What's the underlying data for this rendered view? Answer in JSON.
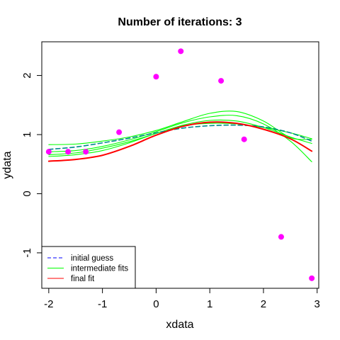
{
  "chart_data": {
    "type": "scatter",
    "title": "Number of iterations: 3",
    "xlabel": "xdata",
    "ylabel": "ydata",
    "xlim": [
      -2.13,
      3.03
    ],
    "ylim": [
      -1.6,
      2.57
    ],
    "x_ticks": [
      -2,
      -1,
      0,
      1,
      2,
      3
    ],
    "y_ticks": [
      -1,
      0,
      1,
      2
    ],
    "x_tick_labels": [
      "-2",
      "-1",
      "0",
      "1",
      "2",
      "3"
    ],
    "y_tick_labels": [
      "-1",
      "0",
      "1",
      "2"
    ],
    "legend_position": "bottom-left",
    "points": {
      "color": "#ff00ff",
      "x": [
        -2.0,
        -1.64,
        -1.31,
        -0.69,
        0.0,
        0.46,
        1.21,
        1.64,
        2.33,
        2.9
      ],
      "y": [
        0.71,
        0.71,
        0.71,
        1.04,
        1.98,
        2.41,
        1.91,
        0.92,
        -0.73,
        -1.43
      ]
    },
    "x_grid": [
      -2.0,
      -1.5,
      -1.0,
      -0.5,
      0.0,
      0.5,
      1.0,
      1.5,
      2.0,
      2.5,
      2.9
    ],
    "series": [
      {
        "name": "initial guess",
        "role": "initial",
        "color": "#0000ff",
        "dash": true,
        "y": [
          0.75,
          0.79,
          0.86,
          0.94,
          1.03,
          1.11,
          1.15,
          1.16,
          1.13,
          1.03,
          0.89
        ]
      },
      {
        "name": "intermediate fits",
        "role": "intermediate",
        "color": "#00ff00",
        "dash": false,
        "y": [
          0.83,
          0.84,
          0.89,
          0.96,
          1.07,
          1.22,
          1.36,
          1.39,
          1.23,
          0.95,
          0.92
        ]
      },
      {
        "name": "",
        "role": "intermediate",
        "color": "#00ff00",
        "dash": false,
        "y": [
          0.71,
          0.73,
          0.8,
          0.91,
          1.05,
          1.2,
          1.3,
          1.32,
          1.18,
          0.89,
          0.54
        ]
      },
      {
        "name": "",
        "role": "intermediate",
        "color": "#00ff00",
        "dash": false,
        "y": [
          0.66,
          0.69,
          0.77,
          0.88,
          1.02,
          1.16,
          1.24,
          1.23,
          1.12,
          0.96,
          0.85
        ]
      },
      {
        "name": "",
        "role": "intermediate",
        "color": "#00ff00",
        "dash": false,
        "y": [
          0.63,
          0.66,
          0.73,
          0.86,
          1.02,
          1.15,
          1.19,
          1.18,
          1.12,
          1.03,
          0.93
        ]
      },
      {
        "name": "",
        "role": "overlay",
        "color": "#008b8b",
        "dash": true,
        "y": [
          0.75,
          0.79,
          0.86,
          0.94,
          1.03,
          1.11,
          1.15,
          1.16,
          1.13,
          1.03,
          0.89
        ]
      },
      {
        "name": "final fit",
        "role": "final",
        "color": "#ff0000",
        "dash": false,
        "y": [
          0.55,
          0.58,
          0.65,
          0.8,
          0.99,
          1.14,
          1.21,
          1.19,
          1.09,
          0.93,
          0.72
        ]
      }
    ],
    "legend": [
      {
        "label": "initial guess",
        "color": "#0000ff",
        "dash": true
      },
      {
        "label": "intermediate fits",
        "color": "#00ff00",
        "dash": false
      },
      {
        "label": "final fit",
        "color": "#ff0000",
        "dash": false
      }
    ]
  }
}
